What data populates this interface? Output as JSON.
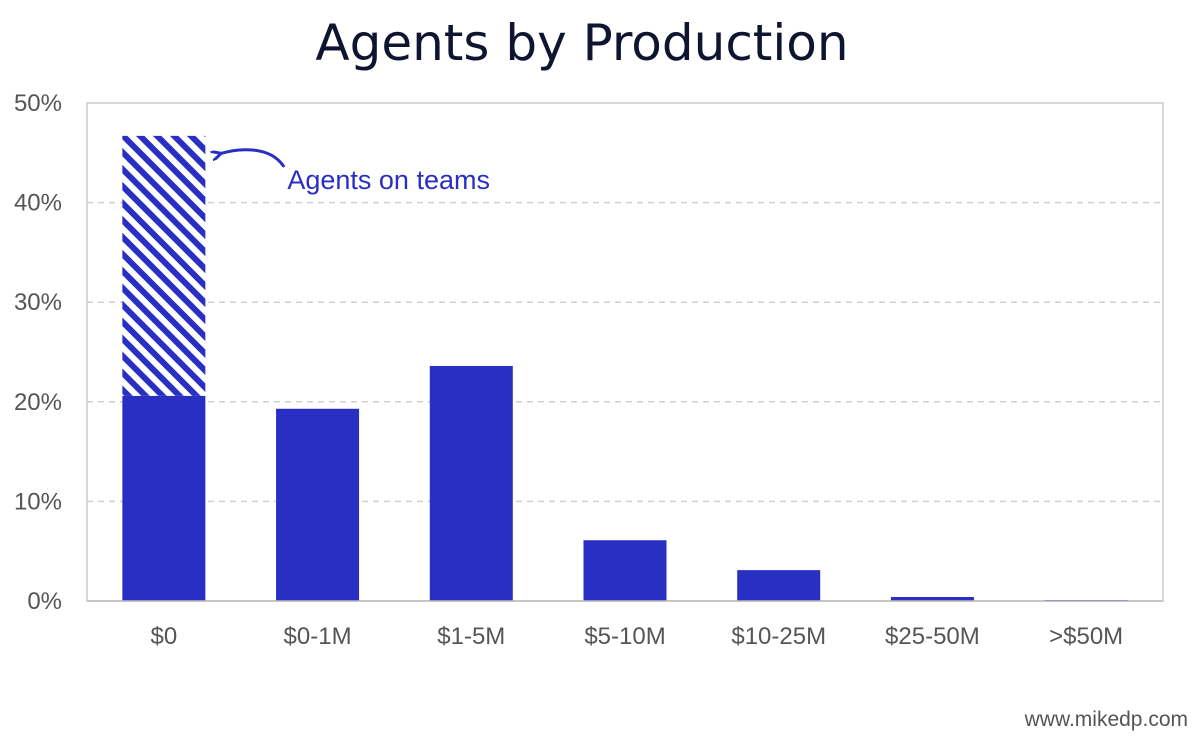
{
  "chart_data": {
    "type": "bar",
    "title": "Agents by Production",
    "categories": [
      "$0",
      "$0-1M",
      "$1-5M",
      "$5-10M",
      "$10-25M",
      "$25-50M",
      ">$50M"
    ],
    "series": [
      {
        "values": [
          20.6,
          19.3,
          23.6,
          6.1,
          3.1,
          0.4,
          0.1
        ]
      },
      {
        "name": "Agents on teams",
        "values": [
          26.1,
          0,
          0,
          0,
          0,
          0,
          0
        ]
      }
    ],
    "stacked": true,
    "ylim": [
      0,
      50
    ],
    "yticks": [
      0,
      10,
      20,
      30,
      40,
      50
    ],
    "ytick_labels": [
      "0%",
      "10%",
      "20%",
      "30%",
      "40%",
      "50%"
    ],
    "grid": true,
    "annotation": {
      "text": "Agents on teams",
      "category": "$0"
    },
    "bar_color": "#2a2fc3",
    "watermark": "www.mikedp.com"
  }
}
